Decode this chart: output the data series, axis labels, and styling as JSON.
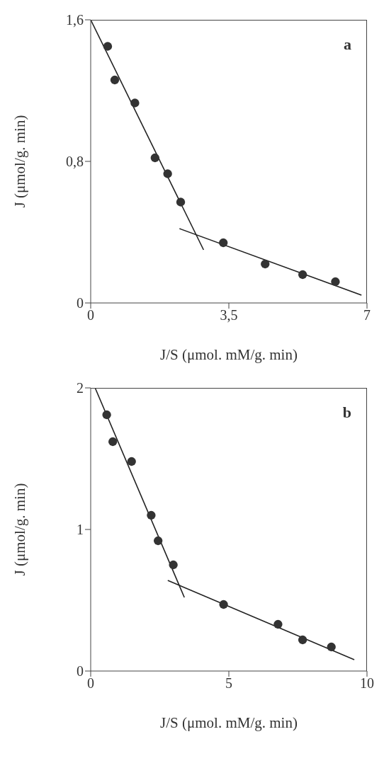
{
  "chart_data": [
    {
      "type": "scatter",
      "annotations": [
        "a"
      ],
      "xlabel": "J/S (μmol. mM/g. min)",
      "ylabel": "J (μmol/g. min)",
      "xlim": [
        0,
        7
      ],
      "xticks": [
        0,
        {
          "value": 3.5,
          "label": "3,5"
        },
        7
      ],
      "ylim": [
        0,
        1.6
      ],
      "yticks": [
        0,
        {
          "value": 0.8,
          "label": "0,8"
        },
        {
          "value": 1.6,
          "label": "1,6"
        }
      ],
      "series": [
        {
          "marker": "circle",
          "color": "#333333",
          "x": [
            0.43,
            0.61,
            1.12,
            1.63,
            1.95,
            2.28,
            3.36,
            4.42,
            5.37,
            6.2
          ],
          "values": [
            1.45,
            1.26,
            1.13,
            0.82,
            0.73,
            0.57,
            0.34,
            0.22,
            0.16,
            0.12
          ]
        },
        {
          "type": "line",
          "color": "#222222",
          "x": [
            0,
            2.86
          ],
          "values": [
            1.6,
            0.3
          ]
        },
        {
          "type": "line",
          "color": "#222222",
          "x": [
            2.25,
            6.86
          ],
          "values": [
            0.42,
            0.044
          ]
        }
      ]
    },
    {
      "type": "scatter",
      "annotations": [
        "b"
      ],
      "xlabel": "J/S (μmol. mM/g. min)",
      "ylabel": "J (μmol/g. min)",
      "xlim": [
        0,
        10
      ],
      "xticks": [
        0,
        5,
        10
      ],
      "ylim": [
        0,
        2
      ],
      "yticks": [
        0,
        1,
        2
      ],
      "series": [
        {
          "marker": "circle",
          "color": "#333333",
          "x": [
            0.58,
            0.8,
            1.48,
            2.19,
            2.44,
            2.99,
            4.81,
            6.78,
            7.67,
            8.71
          ],
          "values": [
            1.81,
            1.62,
            1.48,
            1.1,
            0.92,
            0.75,
            0.47,
            0.33,
            0.22,
            0.17
          ]
        },
        {
          "type": "line",
          "color": "#222222",
          "x": [
            0.16,
            3.39
          ],
          "values": [
            2.0,
            0.52
          ]
        },
        {
          "type": "line",
          "color": "#222222",
          "x": [
            2.79,
            9.54
          ],
          "values": [
            0.64,
            0.08
          ]
        }
      ]
    }
  ]
}
